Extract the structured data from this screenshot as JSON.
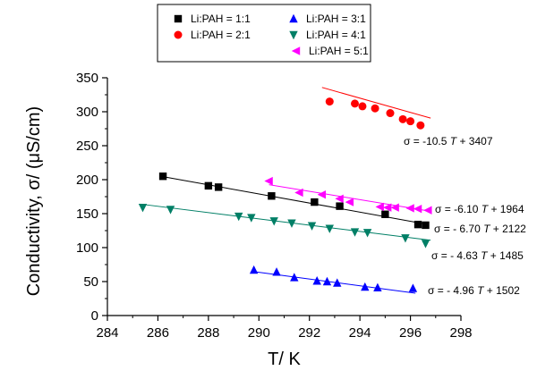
{
  "chart_data": {
    "type": "scatter",
    "xlabel": "T/ K",
    "ylabel": "Conductivity, σ/ (μS/cm)",
    "xlim": [
      284,
      298
    ],
    "ylim": [
      0,
      350
    ],
    "xticks": [
      284,
      286,
      288,
      290,
      292,
      294,
      296,
      298
    ],
    "yticks": [
      0,
      50,
      100,
      150,
      200,
      250,
      300,
      350
    ],
    "legend_position": "top-center",
    "grid": false,
    "series": [
      {
        "name": "Li:PAH = 1:1",
        "marker": "square",
        "color": "#000000",
        "fit_color": "#000000",
        "fit": {
          "slope": -6.7,
          "intercept": 2122
        },
        "fit_range": [
          286.2,
          296.7
        ],
        "equation": "σ = - 6.70 T + 2122",
        "equation_parts": [
          "σ = - 6.70 ",
          "T",
          " + 2122"
        ],
        "x": [
          286.2,
          288.0,
          288.4,
          290.5,
          292.2,
          293.2,
          295.0,
          296.3,
          296.6
        ],
        "y": [
          205,
          191,
          189,
          176,
          167,
          161,
          149,
          134,
          133
        ]
      },
      {
        "name": "Li:PAH = 2:1",
        "marker": "circle",
        "color": "#ff0000",
        "fit_color": "#ff0000",
        "fit": {
          "slope": -10.5,
          "intercept": 3407
        },
        "fit_range": [
          292.5,
          296.8
        ],
        "equation": "σ = -10.5 T + 3407",
        "equation_parts": [
          "σ = -10.5 ",
          "T",
          " + 3407"
        ],
        "x": [
          292.8,
          293.8,
          294.1,
          294.6,
          295.2,
          295.7,
          296.0,
          296.4
        ],
        "y": [
          315,
          312,
          308,
          305,
          298,
          289,
          286,
          280
        ]
      },
      {
        "name": "Li:PAH = 3:1",
        "marker": "triangle-up",
        "color": "#0000ff",
        "fit_color": "#0000ff",
        "fit": {
          "slope": -4.96,
          "intercept": 1502
        },
        "fit_range": [
          289.7,
          296.2
        ],
        "equation": "σ = - 4.96 T + 1502",
        "equation_parts": [
          "σ = - 4.96 ",
          "T",
          " + 1502"
        ],
        "x": [
          289.8,
          290.7,
          291.4,
          292.3,
          292.7,
          293.1,
          294.2,
          294.7,
          296.1
        ],
        "y": [
          67,
          64,
          56,
          51,
          50,
          48,
          42,
          41,
          40
        ]
      },
      {
        "name": "Li:PAH = 4:1",
        "marker": "triangle-down",
        "color": "#007f66",
        "fit_color": "#007f66",
        "fit": {
          "slope": -4.63,
          "intercept": 1485
        },
        "fit_range": [
          285.3,
          296.8
        ],
        "equation": "σ = - 4.63 T + 1485",
        "equation_parts": [
          "σ = - 4.63 ",
          "T",
          " + 1485"
        ],
        "x": [
          285.4,
          286.5,
          289.2,
          289.7,
          290.6,
          291.3,
          292.1,
          292.8,
          293.8,
          294.3,
          295.8,
          296.6
        ],
        "y": [
          159,
          156,
          146,
          144,
          139,
          136,
          132,
          128,
          123,
          122,
          114,
          106
        ]
      },
      {
        "name": "Li:PAH = 5:1",
        "marker": "triangle-left",
        "color": "#ff00ff",
        "fit_color": "#ff00ff",
        "fit": {
          "slope": -6.1,
          "intercept": 1964
        },
        "fit_range": [
          290.4,
          296.8
        ],
        "equation": "σ = -6.10 T + 1964",
        "equation_parts": [
          "σ = -6.10 ",
          "T",
          " + 1964"
        ],
        "x": [
          290.4,
          291.6,
          292.5,
          293.2,
          293.6,
          294.8,
          295.1,
          295.4,
          296.0,
          296.3,
          296.7
        ],
        "y": [
          198,
          181,
          178,
          172,
          167,
          160,
          159,
          159,
          158,
          157,
          155
        ]
      }
    ]
  }
}
